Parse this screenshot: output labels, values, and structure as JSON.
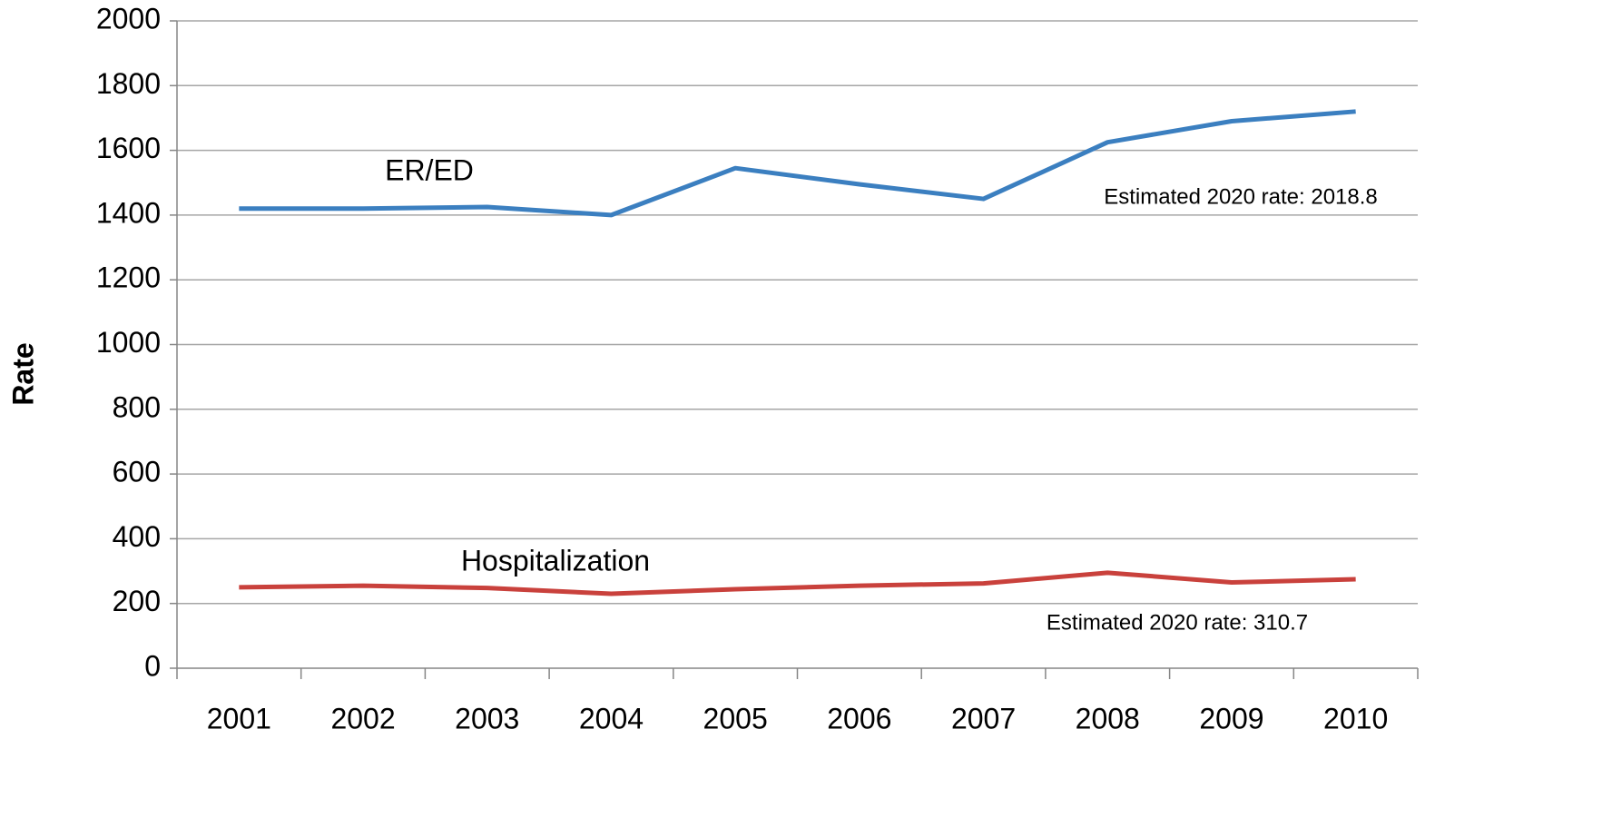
{
  "chart_data": {
    "type": "line",
    "y_label": "Rate",
    "categories": [
      "2001",
      "2002",
      "2003",
      "2004",
      "2005",
      "2006",
      "2007",
      "2008",
      "2009",
      "2010"
    ],
    "series": [
      {
        "name": "ER/ED",
        "color": "#3b7fc0",
        "values": [
          1420,
          1420,
          1425,
          1400,
          1545,
          1495,
          1450,
          1625,
          1690,
          1720
        ]
      },
      {
        "name": "Hospitalization",
        "color": "#c9413c",
        "values": [
          250,
          255,
          248,
          230,
          244,
          255,
          262,
          295,
          265,
          275
        ]
      }
    ],
    "annotations": [
      "Estimated 2020 rate: 2018.8",
      "Estimated 2020 rate: 310.7"
    ],
    "ylim": [
      0,
      2000
    ],
    "yticks": [
      0,
      200,
      400,
      600,
      800,
      1000,
      1200,
      1400,
      1600,
      1800,
      2000
    ],
    "grid": true
  }
}
